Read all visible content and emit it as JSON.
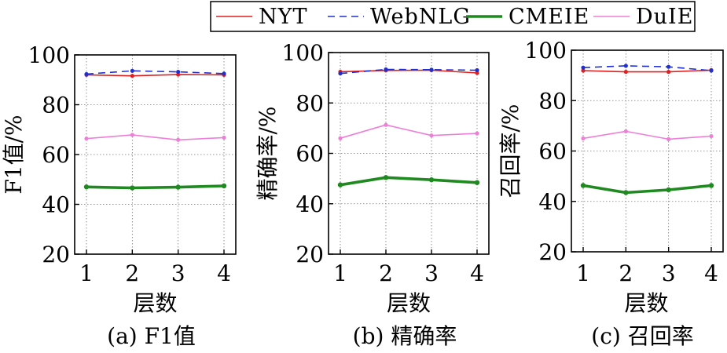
{
  "legend": {
    "placement": "top-right",
    "entries": [
      {
        "name": "NYT",
        "color": "#e02020",
        "style": "solid"
      },
      {
        "name": "WebNLG",
        "color": "#2030d0",
        "style": "dashed"
      },
      {
        "name": "CMEIE",
        "color": "#1f8a1f",
        "style": "solid-thick"
      },
      {
        "name": "DuIE",
        "color": "#ee7fd6",
        "style": "solid"
      }
    ]
  },
  "chart_data": [
    {
      "type": "line",
      "caption": "(a) F1值",
      "xlabel": "层数",
      "ylabel": "F1值/%",
      "x": [
        1,
        2,
        3,
        4
      ],
      "ylim": [
        20,
        100
      ],
      "yticks": [
        20,
        40,
        60,
        80,
        100
      ],
      "grid": true,
      "series": [
        {
          "name": "NYT",
          "values": [
            92.0,
            91.6,
            92.1,
            92.0
          ]
        },
        {
          "name": "WebNLG",
          "values": [
            92.3,
            93.6,
            93.2,
            92.5
          ]
        },
        {
          "name": "CMEIE",
          "values": [
            47.0,
            46.6,
            46.9,
            47.4
          ]
        },
        {
          "name": "DuIE",
          "values": [
            66.4,
            67.9,
            65.9,
            66.8
          ]
        }
      ]
    },
    {
      "type": "line",
      "caption": "(b) 精确率",
      "xlabel": "层数",
      "ylabel": "精确率/%",
      "x": [
        1,
        2,
        3,
        4
      ],
      "ylim": [
        20,
        100
      ],
      "yticks": [
        20,
        40,
        60,
        80,
        100
      ],
      "grid": true,
      "series": [
        {
          "name": "NYT",
          "values": [
            92.4,
            92.9,
            93.0,
            91.9
          ]
        },
        {
          "name": "WebNLG",
          "values": [
            91.7,
            93.3,
            93.2,
            93.0
          ]
        },
        {
          "name": "CMEIE",
          "values": [
            47.5,
            50.4,
            49.5,
            48.4
          ]
        },
        {
          "name": "DuIE",
          "values": [
            66.0,
            71.3,
            67.1,
            67.9
          ]
        }
      ]
    },
    {
      "type": "line",
      "caption": "(c) 召回率",
      "xlabel": "层数",
      "ylabel": "召回率/%",
      "x": [
        1,
        2,
        3,
        4
      ],
      "ylim": [
        20,
        100
      ],
      "yticks": [
        20,
        40,
        60,
        80,
        100
      ],
      "grid": true,
      "series": [
        {
          "name": "NYT",
          "values": [
            91.9,
            91.4,
            91.4,
            92.1
          ]
        },
        {
          "name": "WebNLG",
          "values": [
            93.1,
            93.8,
            93.4,
            91.9
          ]
        },
        {
          "name": "CMEIE",
          "values": [
            46.3,
            43.5,
            44.6,
            46.3
          ]
        },
        {
          "name": "DuIE",
          "values": [
            65.0,
            67.8,
            64.7,
            65.9
          ]
        }
      ]
    }
  ]
}
